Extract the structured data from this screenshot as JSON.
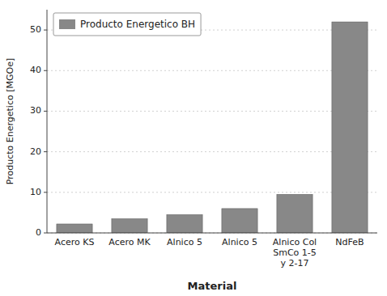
{
  "chart_data": {
    "type": "bar",
    "categories": [
      "Acero KS",
      "Acero MK",
      "Alnico 5",
      "Alnico 5",
      "Alnico Col SmCo 1-5 y 2-17",
      "NdFeB"
    ],
    "series": [
      {
        "name": "Producto Energetico BH",
        "color": "#888888",
        "values": [
          2.2,
          3.5,
          4.5,
          6.0,
          9.5,
          52.0
        ]
      }
    ],
    "xlabel": "Material",
    "ylabel": "Producto Energetico [MGOe]",
    "ylim": [
      0,
      55
    ],
    "yticks": [
      0,
      10,
      20,
      30,
      40,
      50
    ],
    "grid": true,
    "legend": "upper left"
  }
}
